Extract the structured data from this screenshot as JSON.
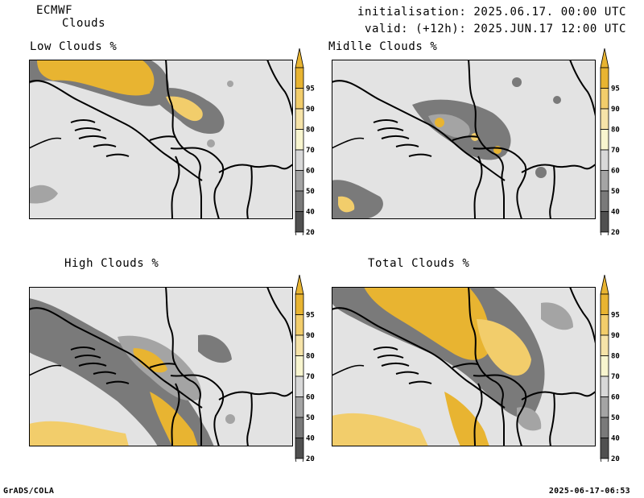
{
  "header": {
    "model": "ECMWF",
    "product": "Clouds",
    "init": "initialisation: 2025.06.17. 00:00 UTC",
    "valid": "valid: (+12h): 2025.JUN.17 12:00 UTC"
  },
  "panels": [
    {
      "title": "Low Clouds %"
    },
    {
      "title": "Midlle Clouds %"
    },
    {
      "title": "High Clouds %"
    },
    {
      "title": "Total Clouds %"
    }
  ],
  "colorbar": {
    "levels": [
      "95",
      "90",
      "80",
      "70",
      "60",
      "50",
      "40",
      "20"
    ],
    "colors": [
      "#e8b431",
      "#f2cd6b",
      "#f6e3a8",
      "#f8f5cf",
      "#d8d8d8",
      "#a4a4a4",
      "#7a7a7a",
      "#505050"
    ],
    "cap_top": "#e8b431",
    "cap_bottom": "#ffffff"
  },
  "footer": {
    "left": "GrADS/COLA",
    "right": "2025-06-17-06:53"
  },
  "colors": {
    "background_map": "#e3e3e3",
    "border": "#000000"
  }
}
